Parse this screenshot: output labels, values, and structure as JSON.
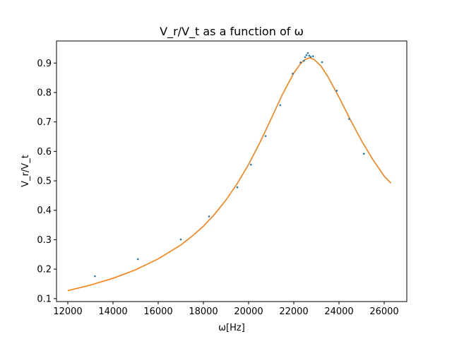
{
  "chart_data": {
    "type": "scatter",
    "title": "V_r/V_t as a function of ω",
    "xlabel": "ω[Hz]",
    "ylabel": "V_r/V_t",
    "xlim": [
      11500,
      27000
    ],
    "ylim": [
      0.09,
      0.975
    ],
    "x_ticks": [
      12000,
      14000,
      16000,
      18000,
      20000,
      22000,
      24000,
      26000
    ],
    "y_ticks": [
      0.1,
      0.2,
      0.3,
      0.4,
      0.5,
      0.6,
      0.7,
      0.8,
      0.9
    ],
    "grid": false,
    "colors": {
      "measured": "#1f77b4",
      "fit": "#ff7f0e"
    },
    "series": [
      {
        "kind": "scatter",
        "x": [
          13200,
          15100,
          17000,
          18250,
          19500,
          20100,
          20750,
          21400,
          21950,
          22300,
          22450,
          22500,
          22560,
          22620,
          22680,
          22750,
          22850,
          23250,
          23900,
          24450,
          25100
        ],
        "y": [
          0.176,
          0.234,
          0.301,
          0.379,
          0.478,
          0.555,
          0.652,
          0.757,
          0.864,
          0.902,
          0.908,
          0.92,
          0.927,
          0.934,
          0.925,
          0.921,
          0.923,
          0.903,
          0.806,
          0.71,
          0.592
        ]
      },
      {
        "kind": "line",
        "x": [
          12000,
          13000,
          14000,
          15000,
          16000,
          17000,
          17500,
          18000,
          18500,
          19000,
          19500,
          20000,
          20500,
          21000,
          21500,
          22000,
          22300,
          22500,
          22700,
          22900,
          23200,
          23500,
          24000,
          24500,
          25000,
          25500,
          26000,
          26300
        ],
        "y": [
          0.127,
          0.146,
          0.169,
          0.198,
          0.235,
          0.282,
          0.312,
          0.346,
          0.387,
          0.435,
          0.491,
          0.556,
          0.63,
          0.711,
          0.794,
          0.866,
          0.898,
          0.912,
          0.918,
          0.912,
          0.89,
          0.855,
          0.784,
          0.708,
          0.636,
          0.572,
          0.516,
          0.492
        ]
      }
    ]
  }
}
